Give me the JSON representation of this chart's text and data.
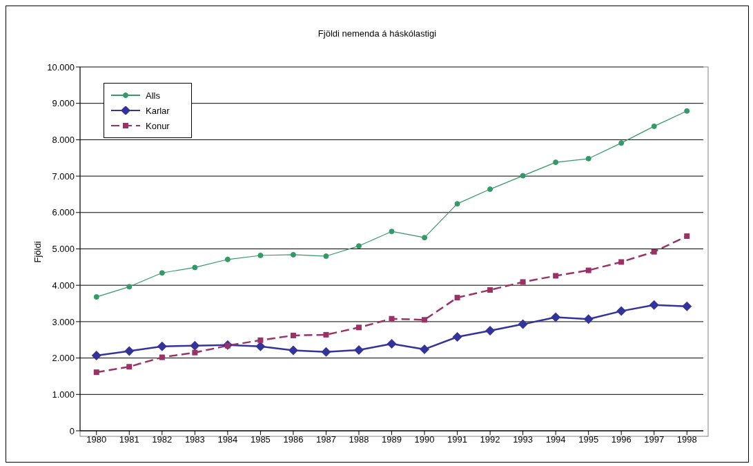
{
  "chart_data": {
    "type": "line",
    "title": "Fjöldi nemenda á háskólastigi",
    "ylabel": "Fjöldi",
    "categories": [
      "1980",
      "1981",
      "1982",
      "1983",
      "1984",
      "1985",
      "1986",
      "1987",
      "1988",
      "1989",
      "1990",
      "1991",
      "1992",
      "1993",
      "1994",
      "1995",
      "1996",
      "1997",
      "1998"
    ],
    "series": [
      {
        "name": "Alls",
        "color": "#339966",
        "marker": "circle",
        "line_style": "solid",
        "values": [
          3680,
          3960,
          4340,
          4490,
          4710,
          4820,
          4840,
          4800,
          5080,
          5480,
          5310,
          6240,
          6640,
          7010,
          7380,
          7480,
          7910,
          8370,
          8790
        ]
      },
      {
        "name": "Karlar",
        "color": "#333399",
        "marker": "diamond",
        "line_style": "solid",
        "values": [
          2070,
          2190,
          2320,
          2340,
          2360,
          2320,
          2210,
          2170,
          2220,
          2390,
          2240,
          2580,
          2750,
          2930,
          3120,
          3070,
          3290,
          3460,
          3420
        ]
      },
      {
        "name": "Konur",
        "color": "#993366",
        "marker": "square",
        "line_style": "dashed",
        "values": [
          1610,
          1760,
          2020,
          2150,
          2340,
          2490,
          2620,
          2640,
          2840,
          3080,
          3050,
          3660,
          3870,
          4090,
          4260,
          4410,
          4640,
          4920,
          5350
        ]
      }
    ],
    "ylim": [
      0,
      10000
    ],
    "yticks": [
      0,
      {
        "value": 1000,
        "label": "1.000"
      },
      {
        "value": 2000,
        "label": "2.000"
      },
      {
        "value": 3000,
        "label": "3.000"
      },
      {
        "value": 4000,
        "label": "4.000"
      },
      {
        "value": 5000,
        "label": "5.000"
      },
      {
        "value": 6000,
        "label": "6.000"
      },
      {
        "value": 7000,
        "label": "7.000"
      },
      {
        "value": 8000,
        "label": "8.000"
      },
      {
        "value": 9000,
        "label": "9.000"
      },
      {
        "value": 10000,
        "label": "10.000"
      }
    ],
    "grid": "y",
    "legend": "top left"
  }
}
